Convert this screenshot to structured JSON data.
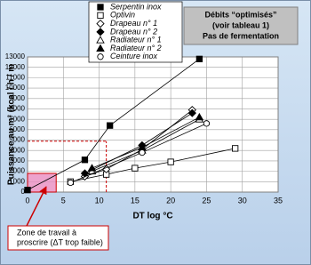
{
  "chart_data": {
    "type": "line",
    "y_label": "Puissance au m² (kcal / h / m",
    "x_label": "DT log °C",
    "info": [
      "Débits “optimisés”",
      "(voir tableau 1)",
      "Pas de fermentation"
    ],
    "zone_note": [
      "Zone de travail à",
      "proscrire (ΔT trop faible)"
    ],
    "zone": {
      "x": [
        0,
        4
      ],
      "y": [
        0,
        1800
      ],
      "color": "#e88cc0"
    },
    "reference": {
      "x": 11,
      "y": 4900,
      "color": "#cc0000"
    },
    "xlim": [
      0,
      35
    ],
    "xticks": [
      0,
      5,
      10,
      15,
      20,
      25,
      30,
      35
    ],
    "ylim": [
      0,
      13000
    ],
    "yticks": [
      0,
      1000,
      2000,
      3000,
      4000,
      5000,
      6000,
      7000,
      8000,
      9000,
      10000,
      11000,
      12000,
      13000
    ],
    "grid": true,
    "series": [
      {
        "name": "Serpentin inox",
        "marker": "square",
        "color": "#000000",
        "x": [
          0,
          8,
          11.5,
          24
        ],
        "values": [
          200,
          3100,
          6400,
          12800
        ]
      },
      {
        "name": "Optivin",
        "marker": "square-open",
        "color": "#000000",
        "x": [
          6,
          11,
          15,
          20,
          29
        ],
        "values": [
          1000,
          1700,
          2300,
          2900,
          4200
        ]
      },
      {
        "name": "Drapeau n° 1",
        "marker": "diamond-open",
        "color": "#000000",
        "x": [
          8,
          11,
          16,
          23
        ],
        "values": [
          1500,
          2200,
          4100,
          7900
        ]
      },
      {
        "name": "Drapeau n° 2",
        "marker": "diamond",
        "color": "#000000",
        "x": [
          8,
          16,
          23
        ],
        "values": [
          1800,
          4500,
          7600
        ]
      },
      {
        "name": "Radiateur n° 1",
        "marker": "triangle-open",
        "color": "#000000",
        "x": [
          9,
          16,
          24
        ],
        "values": [
          2000,
          4000,
          7000
        ]
      },
      {
        "name": "Radiateur n° 2",
        "marker": "triangle",
        "color": "#000000",
        "x": [
          9,
          16,
          24
        ],
        "values": [
          2300,
          4300,
          7200
        ]
      },
      {
        "name": "Ceinture inox",
        "marker": "circle-open",
        "color": "#000000",
        "x": [
          6,
          16,
          25
        ],
        "values": [
          900,
          3800,
          6600
        ]
      }
    ]
  }
}
